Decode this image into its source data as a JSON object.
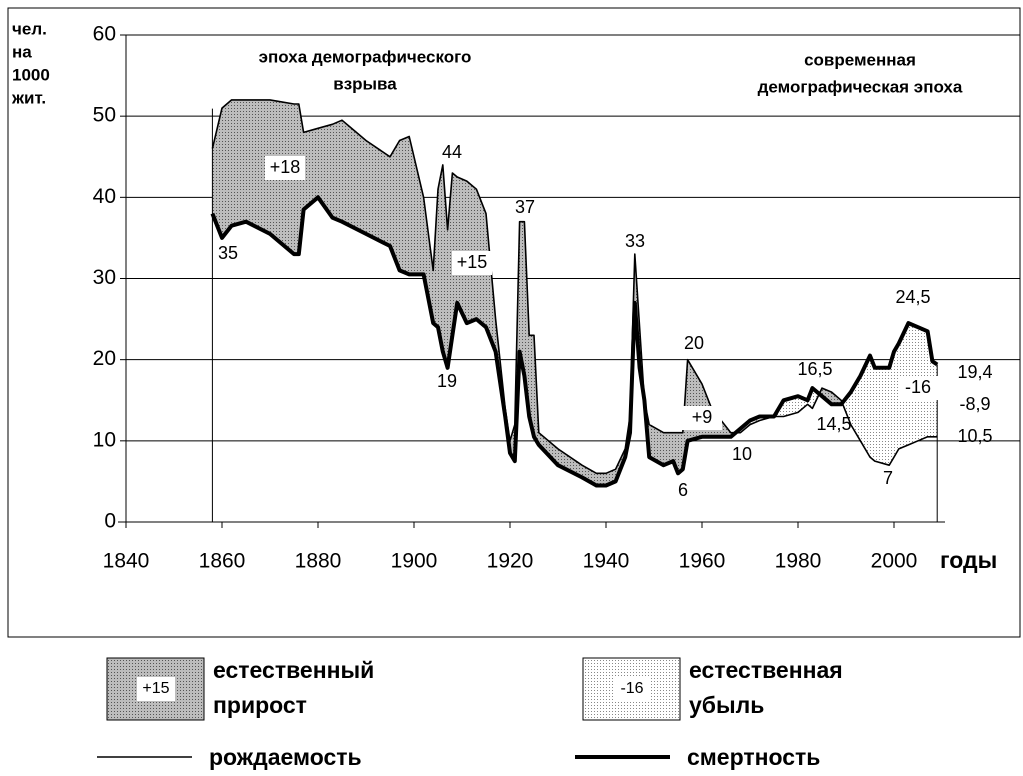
{
  "chart_data": {
    "type": "area-between",
    "y_label": [
      "чел.",
      "на",
      "1000",
      "жит."
    ],
    "x_label": "годы",
    "era_labels": [
      [
        "эпоха демографического",
        "взрыва"
      ],
      [
        "современная",
        "демографическая эпоха"
      ]
    ],
    "x": [
      1858,
      1860,
      1862,
      1865,
      1870,
      1875,
      1876,
      1877,
      1880,
      1883,
      1885,
      1890,
      1895,
      1897,
      1899,
      1902,
      1904,
      1905,
      1906,
      1907,
      1908,
      1909,
      1911,
      1913,
      1915,
      1917,
      1919,
      1920,
      1921,
      1922,
      1923,
      1924,
      1925,
      1926,
      1930,
      1935,
      1938,
      1940,
      1942,
      1944,
      1945,
      1946,
      1947,
      1948,
      1949,
      1952,
      1954,
      1955,
      1956,
      1957,
      1960,
      1962,
      1964,
      1966,
      1968,
      1970,
      1972,
      1975,
      1977,
      1980,
      1982,
      1983,
      1985,
      1987,
      1989,
      1991,
      1993,
      1995,
      1996,
      1999,
      2000,
      2001,
      2003,
      2005,
      2007,
      2008,
      2009
    ],
    "series": [
      {
        "name": "рождаемость",
        "color": "#000000",
        "values": [
          46,
          51,
          52,
          52,
          52,
          51.5,
          51.5,
          48,
          48.5,
          49,
          49.5,
          47,
          45,
          47,
          47.5,
          40,
          31,
          41,
          44,
          36,
          43,
          42.5,
          42,
          41,
          38,
          25,
          14,
          10,
          12,
          37,
          37,
          23,
          23,
          11,
          9,
          7,
          6,
          6,
          6.5,
          9,
          13,
          33,
          24,
          15,
          12,
          11,
          11,
          11,
          11,
          20,
          17,
          14,
          12.5,
          11,
          11,
          12,
          12.5,
          13,
          13,
          13.5,
          14.5,
          14,
          16.5,
          16,
          15,
          12,
          10,
          8,
          7.5,
          7,
          8,
          9,
          9.5,
          10,
          10.5,
          10.5,
          10.5
        ]
      },
      {
        "name": "смертность",
        "color": "#000000",
        "values": [
          38,
          35,
          36.5,
          37,
          35.5,
          33,
          33,
          38.5,
          40,
          37.5,
          37,
          35.5,
          34,
          31,
          30.5,
          30.5,
          24.5,
          24,
          21,
          19,
          23,
          27,
          24.5,
          25,
          24,
          21,
          13,
          8.5,
          7.5,
          21,
          18,
          13,
          10.5,
          9.5,
          7,
          5.5,
          4.5,
          4.5,
          5,
          8,
          11,
          27,
          19,
          15,
          8,
          7,
          7.5,
          6,
          6.5,
          10,
          10.5,
          10.5,
          10.5,
          10.5,
          11.5,
          12.5,
          13,
          13,
          15,
          15.5,
          15,
          16.5,
          15.5,
          14.5,
          14.5,
          16,
          18,
          20.5,
          19,
          19,
          21,
          22,
          24.5,
          24,
          23.5,
          19.8,
          19.4
        ]
      }
    ],
    "annotations": [
      "35",
      "+18",
      "44",
      "+15",
      "19",
      "37",
      "33",
      "20",
      "+9",
      "6",
      "10",
      "16,5",
      "14,5",
      "24,5",
      "-16",
      "7",
      "19,4",
      "-8,9",
      "10,5"
    ],
    "area_legend": [
      {
        "lines": [
          "естественный",
          "прирост"
        ],
        "sample": "+15"
      },
      {
        "lines": [
          "естественная",
          "убыль"
        ],
        "sample": "-16"
      }
    ],
    "xlim": [
      1840,
      2010
    ],
    "xticks": [
      1840,
      1860,
      1880,
      1900,
      1920,
      1940,
      1960,
      1980,
      2000
    ],
    "ylim": [
      0,
      60
    ],
    "yticks": [
      0,
      10,
      20,
      30,
      40,
      50,
      60
    ],
    "grid": true
  }
}
